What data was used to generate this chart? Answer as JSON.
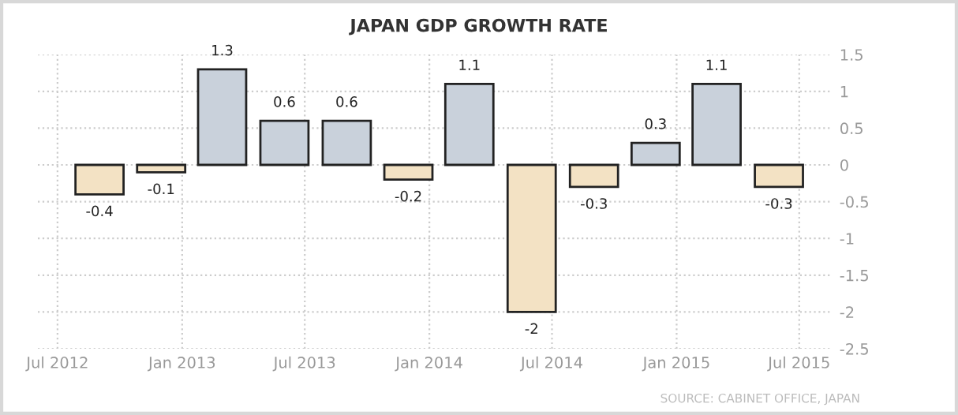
{
  "chart_data": {
    "type": "bar",
    "title": "JAPAN GDP GROWTH RATE",
    "x": [
      "2012-09",
      "2012-12",
      "2013-03",
      "2013-06",
      "2013-09",
      "2013-12",
      "2014-03",
      "2014-06",
      "2014-09",
      "2014-12",
      "2015-03",
      "2015-06"
    ],
    "values": [
      -0.4,
      -0.1,
      1.3,
      0.6,
      0.6,
      -0.2,
      1.1,
      -2,
      -0.3,
      0.3,
      1.1,
      -0.3
    ],
    "colors": [
      "#f3e2c4",
      "#f3e2c4",
      "#c9d1db",
      "#c9d1db",
      "#c9d1db",
      "#f3e2c4",
      "#c9d1db",
      "#f3e2c4",
      "#f3e2c4",
      "#c9d1db",
      "#c9d1db",
      "#f3e2c4"
    ],
    "data_labels": true,
    "xlim": [
      "2012-06-02",
      "2015-08-18"
    ],
    "xticks": [
      {
        "value": "2012-07",
        "label": "Jul 2012"
      },
      {
        "value": "2013-01",
        "label": "Jan 2013"
      },
      {
        "value": "2013-07",
        "label": "Jul 2013"
      },
      {
        "value": "2014-01",
        "label": "Jan 2014"
      },
      {
        "value": "2014-07",
        "label": "Jul 2014"
      },
      {
        "value": "2015-01",
        "label": "Jan 2015"
      },
      {
        "value": "2015-07",
        "label": "Jul 2015"
      }
    ],
    "ylim": [
      -2.5,
      1.5
    ],
    "yticks": [
      -2.5,
      -2,
      -1.5,
      -1,
      -0.5,
      0,
      0.5,
      1,
      1.5
    ],
    "grid": true,
    "annotations": [
      "SOURCE: CABINET OFFICE, JAPAN"
    ]
  }
}
